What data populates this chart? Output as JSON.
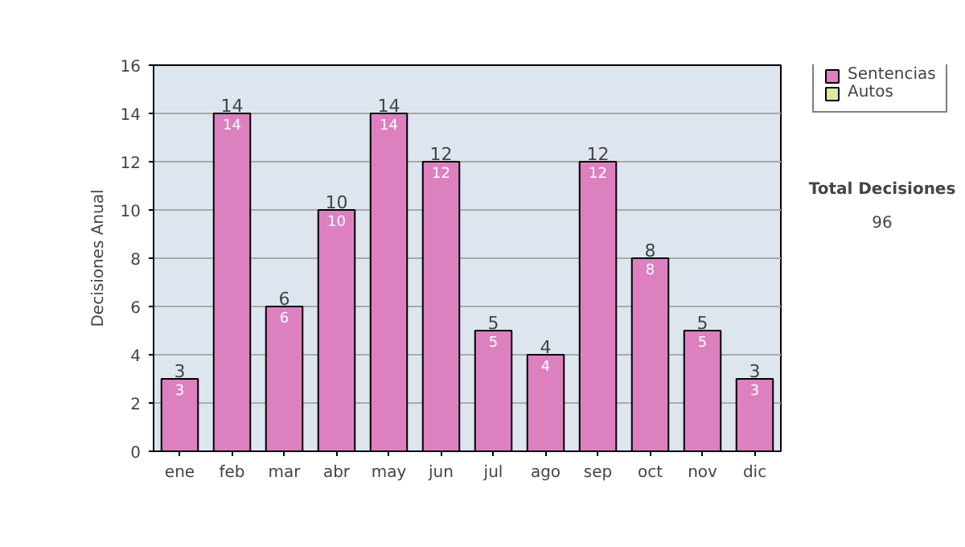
{
  "chart_data": {
    "type": "bar",
    "stacked": true,
    "ylabel": "Decisiones Anual",
    "categories": [
      "ene",
      "feb",
      "mar",
      "abr",
      "may",
      "jun",
      "jul",
      "ago",
      "sep",
      "oct",
      "nov",
      "dic"
    ],
    "series": [
      {
        "name": "Sentencias",
        "color": "#dd80c0",
        "values": [
          3,
          14,
          6,
          10,
          14,
          12,
          5,
          4,
          12,
          8,
          5,
          3
        ]
      },
      {
        "name": "Autos",
        "color": "#d8eca0",
        "values": [
          null,
          null,
          null,
          null,
          null,
          null,
          null,
          null,
          null,
          null,
          null,
          null
        ]
      }
    ],
    "totals": [
      "3",
      "14",
      "6",
      "10",
      "14",
      "12",
      "5",
      "4",
      "12",
      "8",
      "5",
      "3"
    ],
    "data_labels": true,
    "ylim": [
      0,
      16
    ],
    "yticks": [
      0,
      2,
      4,
      6,
      8,
      10,
      12,
      14,
      16
    ],
    "grid": "y",
    "legend": "right",
    "annotations": [
      "Total Decisiones",
      "96"
    ]
  }
}
